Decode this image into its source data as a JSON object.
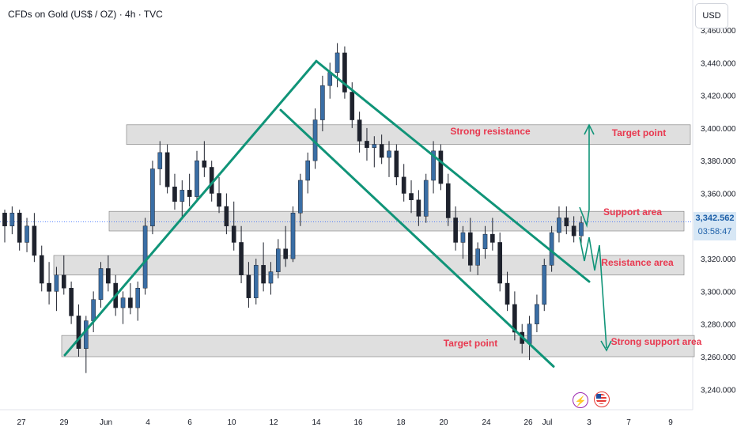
{
  "header": {
    "title": "CFDs on Gold (US$ / OZ) · 4h · TVC",
    "currency": "USD"
  },
  "price_tag": {
    "price": "3,342.562",
    "countdown": "03:58:47"
  },
  "events": [
    "lightning-icon",
    "us-flag-icon"
  ],
  "colors": {
    "up": "#3a6ea5",
    "down": "#1e222d",
    "trendline": "#109478",
    "annotation": "#e8384f",
    "zone": "#d9d9d9"
  },
  "chart_data": {
    "type": "candlestick",
    "title": "",
    "xlabel": "",
    "ylabel": "",
    "ylim": [
      3232,
      3464
    ],
    "y_ticks": [
      "3,240.000",
      "3,260.000",
      "3,280.000",
      "3,300.000",
      "3,320.000",
      "3,340.000",
      "3,360.000",
      "3,380.000",
      "3,400.000",
      "3,420.000",
      "3,440.000",
      "3,460.000"
    ],
    "x_ticks": [
      "27",
      "29",
      "Jun",
      "4",
      "6",
      "10",
      "12",
      "14",
      "16",
      "18",
      "20",
      "24",
      "26",
      "Jul",
      "3",
      "7",
      "9"
    ],
    "current_price": 3342.562,
    "zones": [
      {
        "name": "Strong resistance",
        "low": 3390,
        "high": 3402
      },
      {
        "name": "Support area",
        "low": 3337,
        "high": 3349
      },
      {
        "name": "Resistance area",
        "low": 3310,
        "high": 3322
      },
      {
        "name": "Strong support area",
        "low": 3260,
        "high": 3273
      }
    ],
    "labels": [
      "Strong resistance",
      "Target point",
      "Support area",
      "Resistance area",
      "Target point",
      "Strong support area"
    ],
    "channel_lines": [
      [
        [
          "May 29",
          3261
        ],
        [
          "Jun 16",
          3441
        ]
      ],
      [
        [
          "Jun 16",
          3441
        ],
        [
          "Jul 3",
          3306
        ]
      ],
      [
        [
          "Jun 13",
          3411
        ],
        [
          "Jun 29",
          3254
        ]
      ]
    ],
    "ohlc": [
      [
        3348,
        3350,
        3330,
        3340
      ],
      [
        3340,
        3352,
        3335,
        3348
      ],
      [
        3348,
        3350,
        3325,
        3330
      ],
      [
        3330,
        3345,
        3324,
        3340
      ],
      [
        3340,
        3348,
        3318,
        3322
      ],
      [
        3322,
        3328,
        3300,
        3305
      ],
      [
        3305,
        3318,
        3292,
        3300
      ],
      [
        3300,
        3315,
        3288,
        3310
      ],
      [
        3310,
        3322,
        3298,
        3302
      ],
      [
        3302,
        3306,
        3280,
        3285
      ],
      [
        3285,
        3292,
        3260,
        3265
      ],
      [
        3265,
        3285,
        3250,
        3282
      ],
      [
        3282,
        3300,
        3275,
        3295
      ],
      [
        3295,
        3318,
        3290,
        3314
      ],
      [
        3314,
        3322,
        3300,
        3305
      ],
      [
        3305,
        3310,
        3285,
        3290
      ],
      [
        3290,
        3300,
        3280,
        3296
      ],
      [
        3296,
        3305,
        3286,
        3290
      ],
      [
        3290,
        3306,
        3282,
        3302
      ],
      [
        3302,
        3345,
        3298,
        3340
      ],
      [
        3340,
        3380,
        3335,
        3375
      ],
      [
        3375,
        3392,
        3365,
        3385
      ],
      [
        3385,
        3390,
        3360,
        3364
      ],
      [
        3364,
        3372,
        3350,
        3355
      ],
      [
        3355,
        3368,
        3345,
        3362
      ],
      [
        3362,
        3372,
        3352,
        3358
      ],
      [
        3358,
        3386,
        3355,
        3380
      ],
      [
        3380,
        3392,
        3370,
        3376
      ],
      [
        3376,
        3380,
        3355,
        3360
      ],
      [
        3360,
        3370,
        3348,
        3352
      ],
      [
        3352,
        3360,
        3335,
        3340
      ],
      [
        3340,
        3355,
        3325,
        3330
      ],
      [
        3330,
        3340,
        3305,
        3310
      ],
      [
        3310,
        3318,
        3290,
        3296
      ],
      [
        3296,
        3320,
        3292,
        3316
      ],
      [
        3316,
        3330,
        3300,
        3305
      ],
      [
        3305,
        3318,
        3298,
        3312
      ],
      [
        3312,
        3332,
        3308,
        3326
      ],
      [
        3326,
        3340,
        3315,
        3320
      ],
      [
        3320,
        3352,
        3318,
        3348
      ],
      [
        3348,
        3372,
        3340,
        3368
      ],
      [
        3368,
        3385,
        3360,
        3380
      ],
      [
        3380,
        3412,
        3375,
        3405
      ],
      [
        3405,
        3432,
        3398,
        3426
      ],
      [
        3426,
        3440,
        3418,
        3434
      ],
      [
        3434,
        3452,
        3425,
        3446
      ],
      [
        3446,
        3450,
        3418,
        3422
      ],
      [
        3422,
        3428,
        3400,
        3405
      ],
      [
        3405,
        3410,
        3385,
        3392
      ],
      [
        3392,
        3400,
        3380,
        3388
      ],
      [
        3388,
        3395,
        3376,
        3390
      ],
      [
        3390,
        3396,
        3378,
        3382
      ],
      [
        3382,
        3392,
        3370,
        3386
      ],
      [
        3386,
        3390,
        3365,
        3370
      ],
      [
        3370,
        3378,
        3355,
        3360
      ],
      [
        3360,
        3368,
        3348,
        3356
      ],
      [
        3356,
        3362,
        3340,
        3346
      ],
      [
        3346,
        3372,
        3342,
        3368
      ],
      [
        3368,
        3392,
        3360,
        3386
      ],
      [
        3386,
        3390,
        3362,
        3366
      ],
      [
        3366,
        3372,
        3340,
        3345
      ],
      [
        3345,
        3352,
        3325,
        3330
      ],
      [
        3330,
        3340,
        3320,
        3336
      ],
      [
        3336,
        3345,
        3312,
        3316
      ],
      [
        3316,
        3330,
        3310,
        3326
      ],
      [
        3326,
        3340,
        3320,
        3335
      ],
      [
        3335,
        3345,
        3325,
        3330
      ],
      [
        3330,
        3336,
        3300,
        3305
      ],
      [
        3305,
        3312,
        3288,
        3292
      ],
      [
        3292,
        3300,
        3270,
        3275
      ],
      [
        3275,
        3280,
        3262,
        3268
      ],
      [
        3268,
        3285,
        3258,
        3280
      ],
      [
        3280,
        3298,
        3275,
        3292
      ],
      [
        3292,
        3320,
        3288,
        3316
      ],
      [
        3316,
        3340,
        3312,
        3336
      ],
      [
        3336,
        3352,
        3330,
        3345
      ],
      [
        3345,
        3352,
        3335,
        3340
      ],
      [
        3340,
        3346,
        3330,
        3334
      ],
      [
        3334,
        3346,
        3328,
        3342
      ]
    ]
  }
}
